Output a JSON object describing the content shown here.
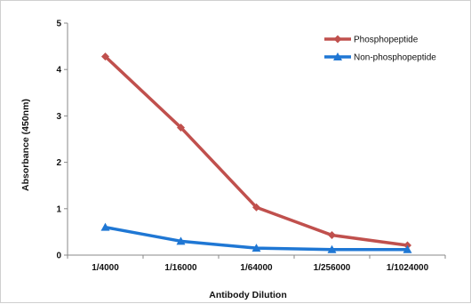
{
  "chart_data": {
    "type": "line",
    "categories": [
      "1/4000",
      "1/16000",
      "1/64000",
      "1/256000",
      "1/1024000"
    ],
    "series": [
      {
        "name": "Phosphopeptide",
        "values": [
          4.28,
          2.75,
          1.03,
          0.43,
          0.21
        ],
        "color": "#c0504d",
        "marker": "diamond"
      },
      {
        "name": "Non-phosphopeptide",
        "values": [
          0.6,
          0.3,
          0.15,
          0.12,
          0.12
        ],
        "color": "#1f77d4",
        "marker": "triangle"
      }
    ],
    "title": "",
    "xlabel": "Antibody Dilution",
    "ylabel": "Absorbance (450nm)",
    "ylim": [
      0,
      5
    ],
    "yticks": [
      "0",
      "1",
      "2",
      "3",
      "4",
      "5"
    ],
    "grid": false,
    "legend_position": "top-right"
  }
}
